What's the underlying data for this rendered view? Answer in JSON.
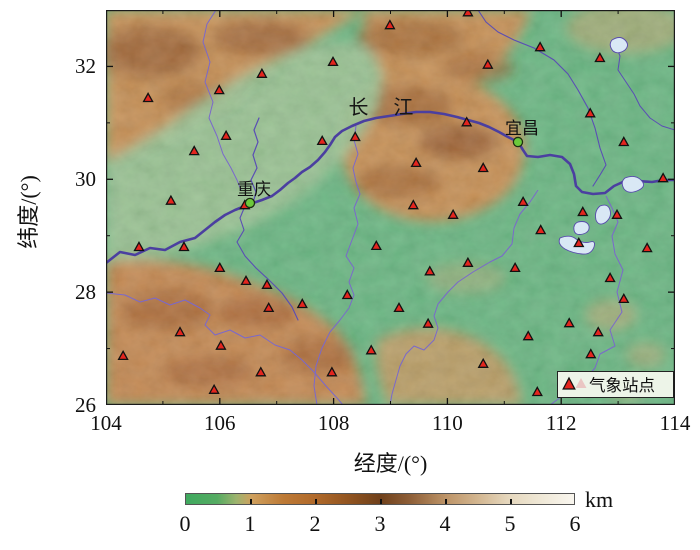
{
  "figure": {
    "x_axis": {
      "label": "经度/(°)",
      "lim": [
        104,
        114
      ],
      "ticks": [
        104,
        106,
        108,
        110,
        112,
        114
      ],
      "minor_ticks": [
        105,
        107,
        109,
        111,
        113
      ]
    },
    "y_axis": {
      "label": "纬度/(°)",
      "lim": [
        26,
        33
      ],
      "ticks": [
        26,
        28,
        30,
        32
      ],
      "minor_ticks": [
        27,
        29,
        31,
        33
      ]
    },
    "legend": {
      "label": "气象站点",
      "marker": "red-triangle"
    },
    "colorbar": {
      "unit": "km",
      "lim": [
        0,
        6
      ],
      "ticks": [
        0,
        1,
        2,
        3,
        4,
        5,
        6
      ],
      "gradient": [
        [
          0,
          "#3fa95f"
        ],
        [
          0.08,
          "#55ab62"
        ],
        [
          0.13,
          "#9db36e"
        ],
        [
          0.17,
          "#cfa05e"
        ],
        [
          0.25,
          "#bd7a36"
        ],
        [
          0.33,
          "#b16a2b"
        ],
        [
          0.42,
          "#915420"
        ],
        [
          0.5,
          "#6f401b"
        ],
        [
          0.58,
          "#8f6039"
        ],
        [
          0.67,
          "#bd9468"
        ],
        [
          0.75,
          "#d2b58f"
        ],
        [
          0.83,
          "#e5d7bd"
        ],
        [
          0.92,
          "#f0e9d8"
        ],
        [
          1,
          "#f9f6ef"
        ]
      ]
    },
    "map": {
      "river_label": {
        "text": "长 江",
        "lon": 108.92,
        "lat": 31.28
      },
      "cities": [
        {
          "name": "重庆",
          "lon": 106.53,
          "lat": 29.58
        },
        {
          "name": "宜昌",
          "lon": 111.24,
          "lat": 30.66
        }
      ],
      "stations": [
        [
          104.74,
          31.44
        ],
        [
          105.99,
          31.58
        ],
        [
          106.74,
          31.87
        ],
        [
          107.99,
          32.08
        ],
        [
          108.99,
          32.73
        ],
        [
          110.36,
          32.96
        ],
        [
          111.63,
          32.34
        ],
        [
          112.68,
          32.15
        ],
        [
          110.71,
          32.03
        ],
        [
          106.11,
          30.77
        ],
        [
          105.55,
          30.5
        ],
        [
          107.8,
          30.68
        ],
        [
          108.38,
          30.75
        ],
        [
          110.34,
          31.01
        ],
        [
          112.51,
          31.17
        ],
        [
          113.1,
          30.66
        ],
        [
          105.14,
          29.62
        ],
        [
          106.44,
          29.54
        ],
        [
          109.45,
          30.29
        ],
        [
          110.63,
          30.2
        ],
        [
          113.79,
          30.02
        ],
        [
          111.33,
          29.6
        ],
        [
          109.4,
          29.54
        ],
        [
          110.1,
          29.37
        ],
        [
          112.38,
          29.42
        ],
        [
          112.98,
          29.37
        ],
        [
          104.58,
          28.8
        ],
        [
          105.37,
          28.8
        ],
        [
          111.64,
          29.1
        ],
        [
          112.31,
          28.87
        ],
        [
          108.75,
          28.82
        ],
        [
          113.51,
          28.78
        ],
        [
          106.0,
          28.43
        ],
        [
          109.69,
          28.37
        ],
        [
          110.36,
          28.52
        ],
        [
          111.19,
          28.43
        ],
        [
          106.46,
          28.2
        ],
        [
          106.83,
          28.13
        ],
        [
          112.86,
          28.25
        ],
        [
          108.24,
          27.95
        ],
        [
          107.45,
          27.79
        ],
        [
          106.86,
          27.72
        ],
        [
          109.15,
          27.72
        ],
        [
          113.1,
          27.88
        ],
        [
          105.3,
          27.29
        ],
        [
          109.66,
          27.44
        ],
        [
          112.14,
          27.45
        ],
        [
          112.65,
          27.29
        ],
        [
          111.42,
          27.22
        ],
        [
          106.02,
          27.05
        ],
        [
          104.3,
          26.87
        ],
        [
          108.66,
          26.97
        ],
        [
          112.52,
          26.9
        ],
        [
          106.72,
          26.58
        ],
        [
          107.97,
          26.58
        ],
        [
          110.63,
          26.73
        ],
        [
          105.9,
          26.27
        ],
        [
          111.58,
          26.23
        ]
      ],
      "colors": {
        "lowland": "#5fb37d",
        "basin": "#93c08f",
        "mountain": "#c28a4e",
        "ridge": "#8a4f24",
        "river": "#4b3fa0",
        "boundary": "#7a68cc",
        "lake": "#d9e8f5",
        "station_fill": "#e4251e",
        "city_marker": "#6cc93b",
        "legend_bg": "#edf4e8"
      }
    }
  }
}
